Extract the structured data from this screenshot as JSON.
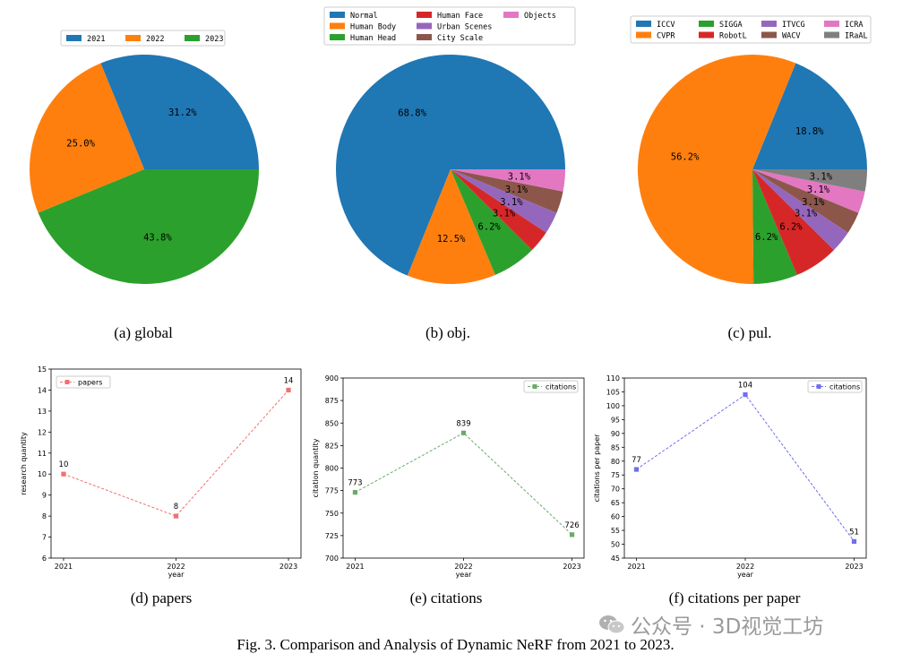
{
  "figure_caption": "Fig. 3.  Comparison and Analysis of Dynamic NeRF from 2021 to 2023.",
  "watermark": {
    "text": "公众号 · 3D视觉工坊",
    "icon": "wechat-icon"
  },
  "captions": {
    "a": "(a) global",
    "b": "(b) obj.",
    "c": "(c) pul.",
    "d": "(d) papers",
    "e": "(e) citations",
    "f": "(f) citations per paper"
  },
  "chart_data": [
    {
      "id": "a",
      "type": "pie",
      "title": "",
      "labels": [
        "2021",
        "2022",
        "2023"
      ],
      "values": [
        31.2,
        25.0,
        43.8
      ],
      "pct_labels": [
        "31.2%",
        "25.0%",
        "43.8%"
      ],
      "colors": [
        "#1f77b4",
        "#ff7f0e",
        "#2ca02c"
      ],
      "legend": {
        "placement": "top",
        "columns": 3
      }
    },
    {
      "id": "b",
      "type": "pie",
      "title": "",
      "labels": [
        "Normal",
        "Human Body",
        "Human Head",
        "Human Face",
        "Urban Scenes",
        "City Scale",
        "Objects"
      ],
      "values": [
        68.8,
        12.5,
        6.2,
        3.1,
        3.1,
        3.1,
        3.1
      ],
      "pct_labels": [
        "68.8%",
        "12.5%",
        "6.2%",
        "3.1%",
        "3.1%",
        "3.1%",
        "3.1%"
      ],
      "colors": [
        "#1f77b4",
        "#ff7f0e",
        "#2ca02c",
        "#d62728",
        "#9467bd",
        "#8c564b",
        "#e377c2"
      ],
      "legend": {
        "placement": "top",
        "columns": 3
      }
    },
    {
      "id": "c",
      "type": "pie",
      "title": "",
      "labels": [
        "ICCV",
        "CVPR",
        "SIGGA",
        "RobotL",
        "ITVCG",
        "WACV",
        "ICRA",
        "IRaAL"
      ],
      "values": [
        18.8,
        56.2,
        6.2,
        6.2,
        3.1,
        3.1,
        3.1,
        3.1
      ],
      "pct_labels": [
        "18.8%",
        "56.2%",
        "6.2%",
        "6.2%",
        "3.1%",
        "3.1%",
        "3.1%",
        "3.1%"
      ],
      "colors": [
        "#1f77b4",
        "#ff7f0e",
        "#2ca02c",
        "#d62728",
        "#9467bd",
        "#8c564b",
        "#e377c2",
        "#7f7f7f"
      ],
      "legend": {
        "placement": "top",
        "columns": 4
      }
    },
    {
      "id": "d",
      "type": "line",
      "x": [
        "2021",
        "2022",
        "2023"
      ],
      "values": [
        10,
        8,
        14
      ],
      "series_name": "papers",
      "color": "#f07070",
      "xlabel": "year",
      "ylabel": "research quantity",
      "ylim": [
        6,
        15
      ],
      "yticks": [
        6,
        7,
        8,
        9,
        10,
        11,
        12,
        13,
        14,
        15
      ],
      "legend": {
        "placement": "top-left"
      }
    },
    {
      "id": "e",
      "type": "line",
      "x": [
        "2021",
        "2022",
        "2023"
      ],
      "values": [
        773,
        839,
        726
      ],
      "series_name": "citations",
      "color": "#6aaa6a",
      "xlabel": "year",
      "ylabel": "citation quantity",
      "ylim": [
        700,
        900
      ],
      "yticks": [
        700,
        725,
        750,
        775,
        800,
        825,
        850,
        875,
        900
      ],
      "legend": {
        "placement": "top-right"
      }
    },
    {
      "id": "f",
      "type": "line",
      "x": [
        "2021",
        "2022",
        "2023"
      ],
      "values": [
        77,
        104,
        51
      ],
      "series_name": "citations",
      "color": "#6f6fee",
      "xlabel": "year",
      "ylabel": "citations per paper",
      "ylim": [
        45,
        110
      ],
      "yticks": [
        45,
        50,
        55,
        60,
        65,
        70,
        75,
        80,
        85,
        90,
        95,
        100,
        105,
        110
      ],
      "legend": {
        "placement": "top-right"
      }
    }
  ]
}
